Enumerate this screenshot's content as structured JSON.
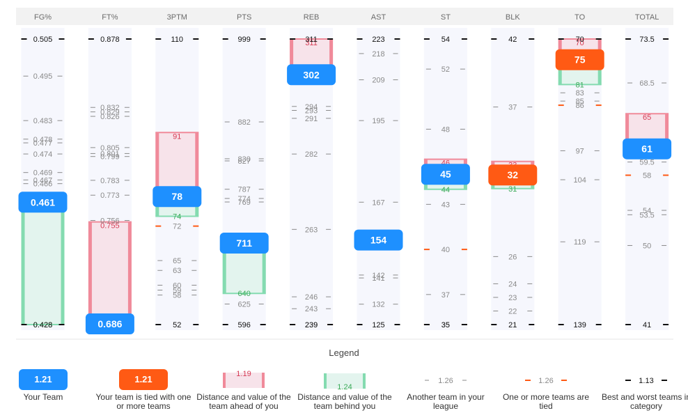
{
  "colors": {
    "your_team": "#1e90ff",
    "tied": "#ff5a14",
    "ahead_fill": "#f7e3ea",
    "ahead_border": "#f08a9a",
    "ahead_text": "#d63a53",
    "behind_fill": "#e3f4ee",
    "behind_border": "#84dbb0",
    "behind_text": "#3aaa57",
    "other_tick": "#8a8a8a",
    "tied_tick": "#ff5a14",
    "extreme_tick": "#111111",
    "header_bg": "#f2f2f2",
    "column_bg": "#f6f7fd"
  },
  "chart_data": {
    "type": "ranking-strip",
    "categories": [
      {
        "name": "FG%",
        "inverted": false,
        "range": [
          0.428,
          0.505
        ],
        "best": "0.505",
        "worst": "0.428",
        "team": {
          "value": 0.461,
          "label": "0.461",
          "tied": false
        },
        "ahead": null,
        "behind": {
          "value": 0.428,
          "label": "0.428"
        },
        "others": [
          {
            "value": 0.495,
            "label": "0.495"
          },
          {
            "value": 0.483,
            "label": "0.483"
          },
          {
            "value": 0.478,
            "label": "0.478"
          },
          {
            "value": 0.477,
            "label": "0.477"
          },
          {
            "value": 0.474,
            "label": "0.474"
          },
          {
            "value": 0.469,
            "label": "0.469"
          },
          {
            "value": 0.467,
            "label": "0.467"
          },
          {
            "value": 0.466,
            "label": "0.466"
          }
        ],
        "tied_ticks": []
      },
      {
        "name": "FT%",
        "inverted": false,
        "range": [
          0.686,
          0.878
        ],
        "best": "0.878",
        "worst": "0.686",
        "team": {
          "value": 0.686,
          "label": "0.686",
          "tied": false
        },
        "ahead": {
          "value": 0.755,
          "label": "0.755"
        },
        "behind": null,
        "others": [
          {
            "value": 0.832,
            "label": "0.832"
          },
          {
            "value": 0.829,
            "label": "0.829"
          },
          {
            "value": 0.826,
            "label": "0.826"
          },
          {
            "value": 0.805,
            "label": "0.805"
          },
          {
            "value": 0.801,
            "label": "0.801"
          },
          {
            "value": 0.799,
            "label": "0.799"
          },
          {
            "value": 0.783,
            "label": "0.783"
          },
          {
            "value": 0.773,
            "label": "0.773"
          },
          {
            "value": 0.756,
            "label": "0.756"
          }
        ],
        "tied_ticks": []
      },
      {
        "name": "3PTM",
        "inverted": false,
        "range": [
          52,
          110
        ],
        "best": "110",
        "worst": "52",
        "team": {
          "value": 78,
          "label": "78",
          "tied": false
        },
        "ahead": {
          "value": 91,
          "label": "91"
        },
        "behind": {
          "value": 74,
          "label": "74"
        },
        "others": [
          {
            "value": 65,
            "label": "65"
          },
          {
            "value": 63,
            "label": "63"
          },
          {
            "value": 60,
            "label": "60"
          },
          {
            "value": 59,
            "label": "59"
          },
          {
            "value": 58,
            "label": "58"
          }
        ],
        "tied_ticks": [
          {
            "value": 72,
            "label": "72"
          }
        ]
      },
      {
        "name": "PTS",
        "inverted": false,
        "range": [
          596,
          999
        ],
        "best": "999",
        "worst": "596",
        "team": {
          "value": 711,
          "label": "711",
          "tied": false
        },
        "ahead": null,
        "behind": {
          "value": 640,
          "label": "640"
        },
        "others": [
          {
            "value": 882,
            "label": "882"
          },
          {
            "value": 830,
            "label": "830"
          },
          {
            "value": 827,
            "label": "827"
          },
          {
            "value": 787,
            "label": "787"
          },
          {
            "value": 774,
            "label": "774"
          },
          {
            "value": 769,
            "label": "769"
          },
          {
            "value": 625,
            "label": "625"
          }
        ],
        "tied_ticks": []
      },
      {
        "name": "REB",
        "inverted": false,
        "range": [
          239,
          311
        ],
        "best": "311",
        "worst": "239",
        "team": {
          "value": 302,
          "label": "302",
          "tied": false
        },
        "ahead": {
          "value": 311,
          "label": "311"
        },
        "behind": null,
        "others": [
          {
            "value": 294,
            "label": "294"
          },
          {
            "value": 293,
            "label": "293"
          },
          {
            "value": 291,
            "label": "291"
          },
          {
            "value": 282,
            "label": "282"
          },
          {
            "value": 263,
            "label": "263"
          },
          {
            "value": 246,
            "label": "246"
          },
          {
            "value": 243,
            "label": "243"
          }
        ],
        "tied_ticks": [
          {
            "value": 239,
            "label": "239"
          }
        ]
      },
      {
        "name": "AST",
        "inverted": false,
        "range": [
          125,
          223
        ],
        "best": "223",
        "worst": "125",
        "team": {
          "value": 154,
          "label": "154",
          "tied": false
        },
        "ahead": null,
        "behind": null,
        "others": [
          {
            "value": 218,
            "label": "218"
          },
          {
            "value": 209,
            "label": "209"
          },
          {
            "value": 195,
            "label": "195"
          },
          {
            "value": 167,
            "label": "167"
          },
          {
            "value": 142,
            "label": "142"
          },
          {
            "value": 141,
            "label": "141"
          },
          {
            "value": 132,
            "label": "132"
          }
        ],
        "tied_ticks": []
      },
      {
        "name": "ST",
        "inverted": false,
        "range": [
          35,
          54
        ],
        "best": "54",
        "worst": "35",
        "team": {
          "value": 45,
          "label": "45",
          "tied": false
        },
        "ahead": {
          "value": 46,
          "label": "46"
        },
        "behind": {
          "value": 44,
          "label": "44"
        },
        "others": [
          {
            "value": 52,
            "label": "52"
          },
          {
            "value": 48,
            "label": "48"
          },
          {
            "value": 43,
            "label": "43"
          },
          {
            "value": 37,
            "label": "37"
          }
        ],
        "tied_ticks": [
          {
            "value": 40,
            "label": "40"
          },
          {
            "value": 35,
            "label": "35"
          }
        ]
      },
      {
        "name": "BLK",
        "inverted": false,
        "range": [
          21,
          42
        ],
        "best": "42",
        "worst": "21",
        "team": {
          "value": 32,
          "label": "32",
          "tied": true
        },
        "ahead": {
          "value": 33,
          "label": "33"
        },
        "behind": {
          "value": 31,
          "label": "31"
        },
        "others": [
          {
            "value": 37,
            "label": "37"
          },
          {
            "value": 26,
            "label": "26"
          },
          {
            "value": 24,
            "label": "24"
          },
          {
            "value": 23,
            "label": "23"
          },
          {
            "value": 22,
            "label": "22"
          }
        ],
        "tied_ticks": []
      },
      {
        "name": "TO",
        "inverted": true,
        "range": [
          139,
          70
        ],
        "best": "70",
        "worst": "139",
        "team": {
          "value": 75,
          "label": "75",
          "tied": true
        },
        "ahead": {
          "value": 70,
          "label": "70"
        },
        "behind": {
          "value": 81,
          "label": "81"
        },
        "others": [
          {
            "value": 83,
            "label": "83"
          },
          {
            "value": 85,
            "label": "85"
          },
          {
            "value": 97,
            "label": "97"
          },
          {
            "value": 104,
            "label": "104"
          },
          {
            "value": 119,
            "label": "119"
          }
        ],
        "tied_ticks": [
          {
            "value": 86,
            "label": "86"
          }
        ]
      },
      {
        "name": "TOTAL",
        "inverted": false,
        "range": [
          41,
          73.5
        ],
        "best": "73.5",
        "worst": "41",
        "team": {
          "value": 61,
          "label": "61",
          "tied": false
        },
        "ahead": {
          "value": 65,
          "label": "65"
        },
        "behind": null,
        "others": [
          {
            "value": 68.5,
            "label": "68.5"
          },
          {
            "value": 59.5,
            "label": "59.5"
          },
          {
            "value": 54,
            "label": "54"
          },
          {
            "value": 53.5,
            "label": "53.5"
          },
          {
            "value": 50,
            "label": "50"
          }
        ],
        "tied_ticks": [
          {
            "value": 58,
            "label": "58"
          }
        ]
      }
    ]
  },
  "legend": {
    "title": "Legend",
    "items": [
      {
        "kind": "your_team",
        "sample": "1.21",
        "caption": "Your Team"
      },
      {
        "kind": "tied",
        "sample": "1.21",
        "caption": "Your team is tied with one or more teams"
      },
      {
        "kind": "ahead",
        "sample": "1.19",
        "caption": "Distance and value of the team ahead of you"
      },
      {
        "kind": "behind",
        "sample": "1.24",
        "caption": "Distance and value of the team behind you"
      },
      {
        "kind": "other",
        "sample": "1.26",
        "caption": "Another team in your league"
      },
      {
        "kind": "tied_tick",
        "sample": "1.26",
        "caption": "One or more teams are tied"
      },
      {
        "kind": "extreme",
        "sample": "1.13",
        "caption": "Best and worst teams in category"
      }
    ]
  }
}
